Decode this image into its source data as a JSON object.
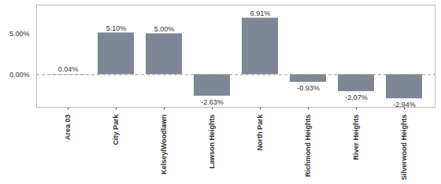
{
  "chart_data": {
    "type": "bar",
    "categories": [
      "Area 03",
      "City Park",
      "Kelsey/Woodlawn",
      "Lawson Heights",
      "North Park",
      "Richmond Heights",
      "River Heights",
      "Silverwood Heights"
    ],
    "values": [
      0.04,
      5.1,
      5.0,
      -2.63,
      6.91,
      -0.93,
      -2.07,
      -2.94
    ],
    "value_labels": [
      "0.04%",
      "5.10%",
      "5.00%",
      "-2.63%",
      "6.91%",
      "-0.93%",
      "-2.07%",
      "-2.94%"
    ],
    "data_labels": true,
    "color": "#7f8796",
    "ylim": [
      -4,
      8.5
    ],
    "yticks": [
      {
        "value": 0,
        "label": "0.00%"
      },
      {
        "value": 5,
        "label": "5.00%"
      }
    ],
    "grid": false
  }
}
